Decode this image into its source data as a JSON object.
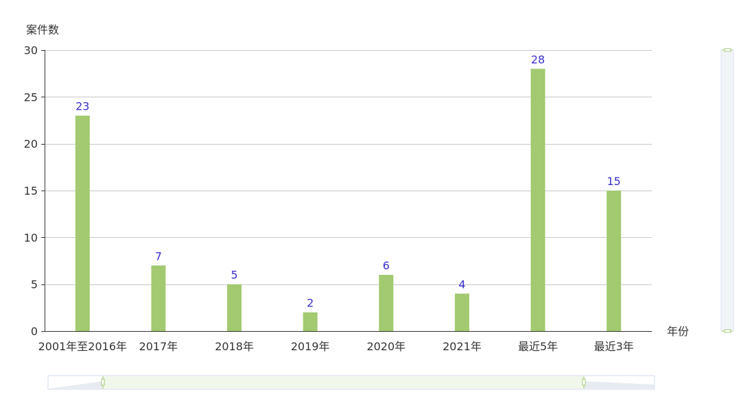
{
  "chart_data": {
    "type": "bar",
    "ylabel": "案件数",
    "xlabel": "年份",
    "categories": [
      "2001年至2016年",
      "2017年",
      "2018年",
      "2019年",
      "2020年",
      "2021年",
      "最近5年",
      "最近3年"
    ],
    "values": [
      23,
      7,
      5,
      2,
      6,
      4,
      28,
      15
    ],
    "ylim": [
      0,
      30
    ],
    "yticks": [
      0,
      5,
      10,
      15,
      20,
      25,
      30
    ],
    "grid": true,
    "legend": "none",
    "data_labels": true,
    "bar_color": "#a3c971",
    "label_color": "#3a2fcf",
    "zoom": {
      "x_start": 0,
      "x_end": 1,
      "y_start": 0,
      "y_end": 1
    }
  }
}
